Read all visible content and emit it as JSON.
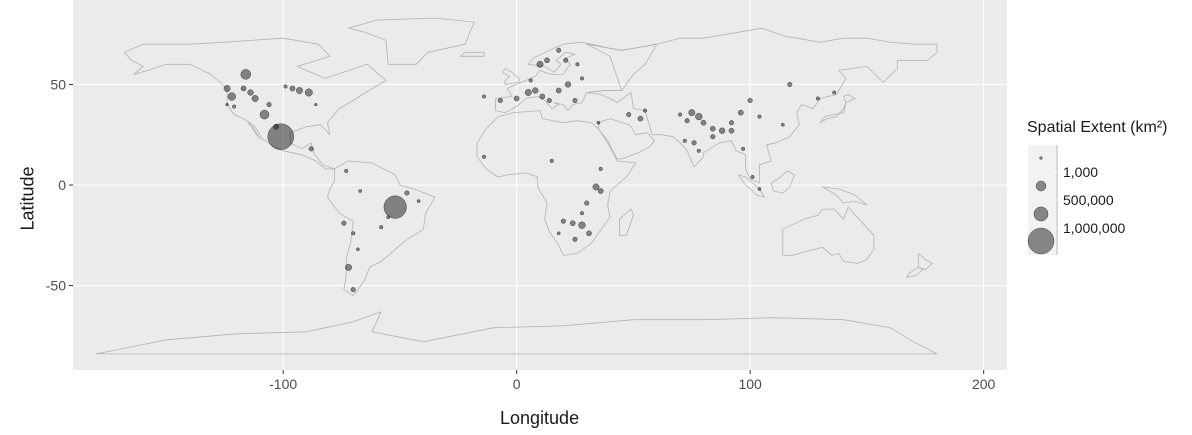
{
  "x_axis": {
    "title": "Longitude",
    "ticks": [
      {
        "value": -100,
        "label": "-100"
      },
      {
        "value": 0,
        "label": "0"
      },
      {
        "value": 100,
        "label": "100"
      },
      {
        "value": 200,
        "label": "200"
      }
    ]
  },
  "y_axis": {
    "title": "Latitude",
    "ticks": [
      {
        "value": 50,
        "label": "50"
      },
      {
        "value": 0,
        "label": "0"
      },
      {
        "value": -50,
        "label": "-50"
      }
    ]
  },
  "legend": {
    "title": "Spatial Extent (km²)",
    "items": [
      {
        "value": 1000,
        "label": "1,000"
      },
      {
        "value": 500000,
        "label": "500,000"
      },
      {
        "value": 1000000,
        "label": "1,000,000"
      }
    ]
  },
  "colors": {
    "panel_background": "#ebebeb",
    "grid_major": "#ffffff",
    "coastline": "#b3b3b3",
    "point_fill": "#000000",
    "point_opacity": 0.45
  },
  "map_data": {
    "xlim": [
      -190,
      210
    ],
    "ylim": [
      -92,
      92
    ],
    "points": [
      {
        "lon": -101,
        "lat": 24,
        "area": 1000000
      },
      {
        "lon": -52,
        "lat": -11,
        "area": 750000
      },
      {
        "lon": -116,
        "lat": 55,
        "area": 150000
      },
      {
        "lon": -108,
        "lat": 35,
        "area": 120000
      },
      {
        "lon": -122,
        "lat": 44,
        "area": 90000
      },
      {
        "lon": -124,
        "lat": 48,
        "area": 60000
      },
      {
        "lon": -117,
        "lat": 48,
        "area": 40000
      },
      {
        "lon": -112,
        "lat": 43,
        "area": 60000
      },
      {
        "lon": -114,
        "lat": 46,
        "area": 50000
      },
      {
        "lon": -106,
        "lat": 40,
        "area": 30000
      },
      {
        "lon": -121,
        "lat": 39,
        "area": 20000
      },
      {
        "lon": -124,
        "lat": 40,
        "area": 10000
      },
      {
        "lon": -96,
        "lat": 48,
        "area": 40000
      },
      {
        "lon": -93,
        "lat": 47,
        "area": 60000
      },
      {
        "lon": -89,
        "lat": 46,
        "area": 80000
      },
      {
        "lon": -99,
        "lat": 49,
        "area": 20000
      },
      {
        "lon": -86,
        "lat": 40,
        "area": 10000
      },
      {
        "lon": -88,
        "lat": 18,
        "area": 30000
      },
      {
        "lon": -103,
        "lat": 29,
        "area": 40000
      },
      {
        "lon": -73,
        "lat": 7,
        "area": 20000
      },
      {
        "lon": -67,
        "lat": -3,
        "area": 15000
      },
      {
        "lon": -74,
        "lat": -19,
        "area": 30000
      },
      {
        "lon": -70,
        "lat": -24,
        "area": 20000
      },
      {
        "lon": -68,
        "lat": -32,
        "area": 15000
      },
      {
        "lon": -72,
        "lat": -41,
        "area": 60000
      },
      {
        "lon": -70,
        "lat": -52,
        "area": 30000
      },
      {
        "lon": -58,
        "lat": -21,
        "area": 20000
      },
      {
        "lon": -55,
        "lat": -16,
        "area": 15000
      },
      {
        "lon": -47,
        "lat": -4,
        "area": 30000
      },
      {
        "lon": -42,
        "lat": -8,
        "area": 15000
      },
      {
        "lon": -7,
        "lat": 42,
        "area": 30000
      },
      {
        "lon": 0,
        "lat": 43,
        "area": 40000
      },
      {
        "lon": 5,
        "lat": 46,
        "area": 60000
      },
      {
        "lon": 8,
        "lat": 47,
        "area": 50000
      },
      {
        "lon": 11,
        "lat": 44,
        "area": 40000
      },
      {
        "lon": 14,
        "lat": 42,
        "area": 30000
      },
      {
        "lon": 18,
        "lat": 47,
        "area": 40000
      },
      {
        "lon": 22,
        "lat": 50,
        "area": 50000
      },
      {
        "lon": 25,
        "lat": 42,
        "area": 30000
      },
      {
        "lon": 28,
        "lat": 53,
        "area": 20000
      },
      {
        "lon": 10,
        "lat": 60,
        "area": 60000
      },
      {
        "lon": 13,
        "lat": 62,
        "area": 40000
      },
      {
        "lon": 18,
        "lat": 67,
        "area": 30000
      },
      {
        "lon": 21,
        "lat": 62,
        "area": 30000
      },
      {
        "lon": 26,
        "lat": 60,
        "area": 20000
      },
      {
        "lon": 6,
        "lat": 52,
        "area": 20000
      },
      {
        "lon": -14,
        "lat": 44,
        "area": 20000
      },
      {
        "lon": 48,
        "lat": 35,
        "area": 30000
      },
      {
        "lon": 53,
        "lat": 33,
        "area": 40000
      },
      {
        "lon": 55,
        "lat": 37,
        "area": 20000
      },
      {
        "lon": 35,
        "lat": 31,
        "area": 15000
      },
      {
        "lon": -14,
        "lat": 14,
        "area": 20000
      },
      {
        "lon": 15,
        "lat": 12,
        "area": 20000
      },
      {
        "lon": 36,
        "lat": 8,
        "area": 20000
      },
      {
        "lon": 34,
        "lat": -1,
        "area": 60000
      },
      {
        "lon": 36,
        "lat": -3,
        "area": 40000
      },
      {
        "lon": 30,
        "lat": -9,
        "area": 30000
      },
      {
        "lon": 28,
        "lat": -14,
        "area": 20000
      },
      {
        "lon": 20,
        "lat": -18,
        "area": 30000
      },
      {
        "lon": 24,
        "lat": -19,
        "area": 40000
      },
      {
        "lon": 28,
        "lat": -20,
        "area": 70000
      },
      {
        "lon": 31,
        "lat": -24,
        "area": 40000
      },
      {
        "lon": 25,
        "lat": -27,
        "area": 30000
      },
      {
        "lon": 18,
        "lat": -24,
        "area": 15000
      },
      {
        "lon": 75,
        "lat": 36,
        "area": 60000
      },
      {
        "lon": 78,
        "lat": 34,
        "area": 70000
      },
      {
        "lon": 80,
        "lat": 31,
        "area": 40000
      },
      {
        "lon": 84,
        "lat": 28,
        "area": 40000
      },
      {
        "lon": 88,
        "lat": 27,
        "area": 50000
      },
      {
        "lon": 92,
        "lat": 27,
        "area": 40000
      },
      {
        "lon": 73,
        "lat": 32,
        "area": 30000
      },
      {
        "lon": 70,
        "lat": 35,
        "area": 20000
      },
      {
        "lon": 76,
        "lat": 21,
        "area": 30000
      },
      {
        "lon": 78,
        "lat": 17,
        "area": 20000
      },
      {
        "lon": 72,
        "lat": 22,
        "area": 20000
      },
      {
        "lon": 84,
        "lat": 24,
        "area": 30000
      },
      {
        "lon": 96,
        "lat": 36,
        "area": 40000
      },
      {
        "lon": 100,
        "lat": 42,
        "area": 30000
      },
      {
        "lon": 104,
        "lat": 34,
        "area": 20000
      },
      {
        "lon": 92,
        "lat": 31,
        "area": 30000
      },
      {
        "lon": 97,
        "lat": 18,
        "area": 20000
      },
      {
        "lon": 101,
        "lat": 4,
        "area": 20000
      },
      {
        "lon": 104,
        "lat": -2,
        "area": 15000
      },
      {
        "lon": 117,
        "lat": 50,
        "area": 30000
      },
      {
        "lon": 129,
        "lat": 43,
        "area": 20000
      },
      {
        "lon": 136,
        "lat": 46,
        "area": 20000
      },
      {
        "lon": 114,
        "lat": 30,
        "area": 15000
      }
    ]
  }
}
